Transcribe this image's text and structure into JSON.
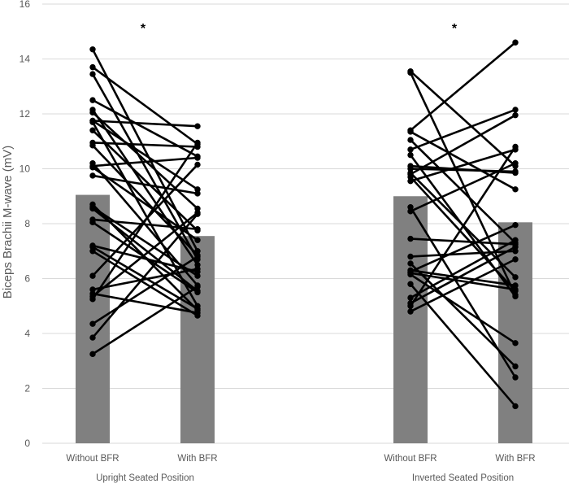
{
  "chart_data": {
    "type": "bar",
    "ylabel": "Biceps Brachii M-wave (mV)",
    "ylim": [
      0,
      16
    ],
    "yticks": [
      0,
      2,
      4,
      6,
      8,
      10,
      12,
      14,
      16
    ],
    "grid": true,
    "colors": {
      "bar": "#808080",
      "line": "#000000",
      "grid": "#d9d9d9",
      "text": "#595959"
    },
    "groups": [
      {
        "label": "Upright Seated Position",
        "categories": [
          "Without BFR",
          "With BFR"
        ],
        "bar_means": [
          9.05,
          7.55
        ],
        "significance": "*",
        "paired_points": [
          [
            14.35,
            7.0
          ],
          [
            13.7,
            10.9
          ],
          [
            13.45,
            6.7
          ],
          [
            12.5,
            10.45
          ],
          [
            12.15,
            6.5
          ],
          [
            12.05,
            8.55
          ],
          [
            11.75,
            11.55
          ],
          [
            11.75,
            9.25
          ],
          [
            11.7,
            5.0
          ],
          [
            11.4,
            7.75
          ],
          [
            10.95,
            10.8
          ],
          [
            10.85,
            6.85
          ],
          [
            10.2,
            5.75
          ],
          [
            10.1,
            10.4
          ],
          [
            10.05,
            7.4
          ],
          [
            9.75,
            9.1
          ],
          [
            8.7,
            4.85
          ],
          [
            8.6,
            6.1
          ],
          [
            8.55,
            5.55
          ],
          [
            8.15,
            7.8
          ],
          [
            8.05,
            5.5
          ],
          [
            7.2,
            6.25
          ],
          [
            7.15,
            4.9
          ],
          [
            7.0,
            4.65
          ],
          [
            6.1,
            10.15
          ],
          [
            5.6,
            6.35
          ],
          [
            5.45,
            4.75
          ],
          [
            5.35,
            8.4
          ],
          [
            5.25,
            10.95
          ],
          [
            4.35,
            6.8
          ],
          [
            3.85,
            8.35
          ],
          [
            3.25,
            5.7
          ]
        ]
      },
      {
        "label": "Inverted Seated Position",
        "categories": [
          "Without BFR",
          "With BFR"
        ],
        "bar_means": [
          9.0,
          8.05
        ],
        "significance": "*",
        "paired_points": [
          [
            13.55,
            10.1
          ],
          [
            13.5,
            5.4
          ],
          [
            11.4,
            14.6
          ],
          [
            11.35,
            9.25
          ],
          [
            11.05,
            7.3
          ],
          [
            10.7,
            12.15
          ],
          [
            10.5,
            5.35
          ],
          [
            10.1,
            9.85
          ],
          [
            10.0,
            9.9
          ],
          [
            9.85,
            6.05
          ],
          [
            9.8,
            11.95
          ],
          [
            9.7,
            5.55
          ],
          [
            9.55,
            10.7
          ],
          [
            8.6,
            2.4
          ],
          [
            8.45,
            10.2
          ],
          [
            7.45,
            7.25
          ],
          [
            6.8,
            7.0
          ],
          [
            6.55,
            2.8
          ],
          [
            6.3,
            5.75
          ],
          [
            6.25,
            7.95
          ],
          [
            6.2,
            5.6
          ],
          [
            6.15,
            3.65
          ],
          [
            5.8,
            1.35
          ],
          [
            5.3,
            7.4
          ],
          [
            5.1,
            7.15
          ],
          [
            5.0,
            10.8
          ],
          [
            4.8,
            6.7
          ]
        ]
      }
    ]
  }
}
